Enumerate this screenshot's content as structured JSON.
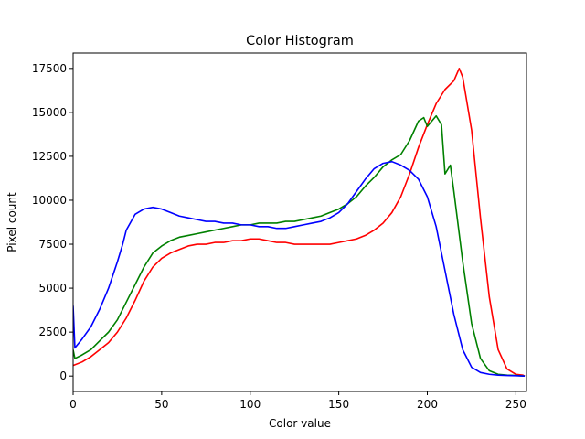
{
  "chart_data": {
    "type": "line",
    "title": "Color Histogram",
    "xlabel": "Color value",
    "ylabel": "Pixel count",
    "xlim": [
      0,
      256
    ],
    "ylim": [
      -875,
      18375
    ],
    "x_ticks": [
      0,
      50,
      100,
      150,
      200,
      250
    ],
    "y_ticks": [
      0,
      2500,
      5000,
      7500,
      10000,
      12500,
      15000,
      17500
    ],
    "grid": false,
    "legend": "none",
    "series": [
      {
        "color": "#ff0000",
        "points": [
          [
            0,
            600
          ],
          [
            5,
            800
          ],
          [
            10,
            1100
          ],
          [
            15,
            1500
          ],
          [
            20,
            1900
          ],
          [
            25,
            2500
          ],
          [
            30,
            3300
          ],
          [
            35,
            4300
          ],
          [
            40,
            5400
          ],
          [
            45,
            6200
          ],
          [
            50,
            6700
          ],
          [
            55,
            7000
          ],
          [
            60,
            7200
          ],
          [
            65,
            7400
          ],
          [
            70,
            7500
          ],
          [
            75,
            7500
          ],
          [
            80,
            7600
          ],
          [
            85,
            7600
          ],
          [
            90,
            7700
          ],
          [
            95,
            7700
          ],
          [
            100,
            7800
          ],
          [
            105,
            7800
          ],
          [
            110,
            7700
          ],
          [
            115,
            7600
          ],
          [
            120,
            7600
          ],
          [
            125,
            7500
          ],
          [
            130,
            7500
          ],
          [
            135,
            7500
          ],
          [
            140,
            7500
          ],
          [
            145,
            7500
          ],
          [
            150,
            7600
          ],
          [
            155,
            7700
          ],
          [
            160,
            7800
          ],
          [
            165,
            8000
          ],
          [
            170,
            8300
          ],
          [
            175,
            8700
          ],
          [
            180,
            9300
          ],
          [
            185,
            10200
          ],
          [
            190,
            11500
          ],
          [
            195,
            13000
          ],
          [
            200,
            14300
          ],
          [
            205,
            15500
          ],
          [
            210,
            16300
          ],
          [
            215,
            16800
          ],
          [
            218,
            17500
          ],
          [
            220,
            17000
          ],
          [
            225,
            14000
          ],
          [
            230,
            9000
          ],
          [
            235,
            4500
          ],
          [
            240,
            1500
          ],
          [
            245,
            400
          ],
          [
            250,
            100
          ],
          [
            254,
            50
          ],
          [
            255,
            0
          ]
        ]
      },
      {
        "color": "#008000",
        "points": [
          [
            0,
            1500
          ],
          [
            1,
            1000
          ],
          [
            5,
            1200
          ],
          [
            10,
            1500
          ],
          [
            15,
            2000
          ],
          [
            20,
            2500
          ],
          [
            25,
            3200
          ],
          [
            30,
            4200
          ],
          [
            35,
            5200
          ],
          [
            40,
            6200
          ],
          [
            45,
            7000
          ],
          [
            50,
            7400
          ],
          [
            55,
            7700
          ],
          [
            60,
            7900
          ],
          [
            65,
            8000
          ],
          [
            70,
            8100
          ],
          [
            75,
            8200
          ],
          [
            80,
            8300
          ],
          [
            85,
            8400
          ],
          [
            90,
            8500
          ],
          [
            95,
            8600
          ],
          [
            100,
            8600
          ],
          [
            105,
            8700
          ],
          [
            110,
            8700
          ],
          [
            115,
            8700
          ],
          [
            120,
            8800
          ],
          [
            125,
            8800
          ],
          [
            130,
            8900
          ],
          [
            135,
            9000
          ],
          [
            140,
            9100
          ],
          [
            145,
            9300
          ],
          [
            150,
            9500
          ],
          [
            155,
            9800
          ],
          [
            160,
            10200
          ],
          [
            165,
            10800
          ],
          [
            170,
            11300
          ],
          [
            175,
            11900
          ],
          [
            180,
            12300
          ],
          [
            185,
            12600
          ],
          [
            190,
            13400
          ],
          [
            195,
            14500
          ],
          [
            198,
            14700
          ],
          [
            200,
            14200
          ],
          [
            205,
            14800
          ],
          [
            208,
            14300
          ],
          [
            210,
            11500
          ],
          [
            213,
            12000
          ],
          [
            215,
            10500
          ],
          [
            220,
            6500
          ],
          [
            225,
            3000
          ],
          [
            230,
            1000
          ],
          [
            235,
            300
          ],
          [
            240,
            100
          ],
          [
            245,
            50
          ],
          [
            250,
            30
          ],
          [
            255,
            0
          ]
        ]
      },
      {
        "color": "#0000ff",
        "points": [
          [
            0,
            4000
          ],
          [
            1,
            1600
          ],
          [
            5,
            2100
          ],
          [
            10,
            2800
          ],
          [
            15,
            3800
          ],
          [
            20,
            5000
          ],
          [
            25,
            6500
          ],
          [
            28,
            7500
          ],
          [
            30,
            8300
          ],
          [
            35,
            9200
          ],
          [
            40,
            9500
          ],
          [
            45,
            9600
          ],
          [
            50,
            9500
          ],
          [
            55,
            9300
          ],
          [
            60,
            9100
          ],
          [
            65,
            9000
          ],
          [
            70,
            8900
          ],
          [
            75,
            8800
          ],
          [
            80,
            8800
          ],
          [
            85,
            8700
          ],
          [
            90,
            8700
          ],
          [
            95,
            8600
          ],
          [
            100,
            8600
          ],
          [
            105,
            8500
          ],
          [
            110,
            8500
          ],
          [
            115,
            8400
          ],
          [
            120,
            8400
          ],
          [
            125,
            8500
          ],
          [
            130,
            8600
          ],
          [
            135,
            8700
          ],
          [
            140,
            8800
          ],
          [
            145,
            9000
          ],
          [
            150,
            9300
          ],
          [
            155,
            9800
          ],
          [
            160,
            10500
          ],
          [
            165,
            11200
          ],
          [
            170,
            11800
          ],
          [
            175,
            12100
          ],
          [
            180,
            12200
          ],
          [
            185,
            12000
          ],
          [
            190,
            11700
          ],
          [
            195,
            11200
          ],
          [
            200,
            10200
          ],
          [
            205,
            8500
          ],
          [
            210,
            6000
          ],
          [
            215,
            3500
          ],
          [
            220,
            1500
          ],
          [
            225,
            500
          ],
          [
            230,
            200
          ],
          [
            235,
            100
          ],
          [
            240,
            50
          ],
          [
            245,
            30
          ],
          [
            250,
            20
          ],
          [
            255,
            0
          ]
        ]
      }
    ]
  }
}
